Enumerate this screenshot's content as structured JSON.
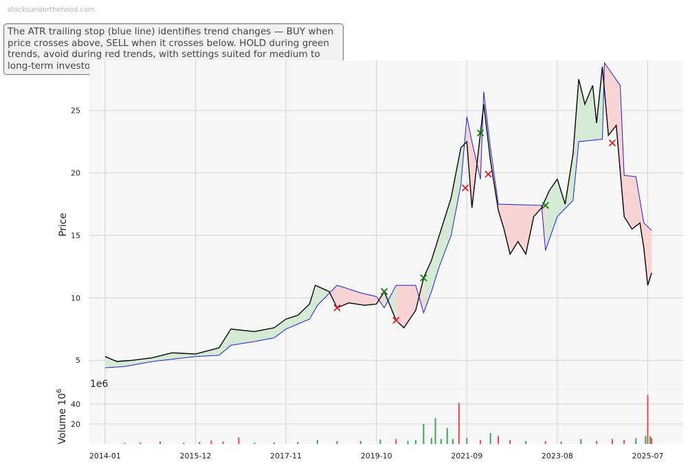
{
  "watermark": "stocksunderthehood.com",
  "annotation": "The ATR trailing stop (blue line) identifies trend changes — BUY when price crosses above, SELL when it crosses below. HOLD during green trends, avoid during red trends, with settings suited for medium to long-term investors.",
  "colors": {
    "price": "#000000",
    "stop": "#1f1fd6",
    "bull_fill": "#d5ead5",
    "bear_fill": "#f9d4d4",
    "buy_marker": "#117711",
    "sell_marker": "#d61f1f",
    "vol_up": "#3aa55f",
    "vol_down": "#e84a4a",
    "panel_bg": "#f7f7f7",
    "grid": "#d2d2d2"
  },
  "chart_data": [
    {
      "type": "line",
      "ylabel": "Price",
      "ylim": [
        2.7,
        29.0
      ],
      "yticks": [
        5,
        10,
        15,
        20,
        25
      ],
      "xlim": [
        "2013-09",
        "2026-04"
      ],
      "xticks": [
        "2014-01",
        "2015-12",
        "2017-11",
        "2019-10",
        "2021-09",
        "2023-08",
        "2025-07"
      ],
      "grid": true,
      "price_series": {
        "name": "Price",
        "points": [
          [
            "2014-01-01",
            5.3
          ],
          [
            "2014-04-01",
            4.9
          ],
          [
            "2014-08-01",
            5.0
          ],
          [
            "2015-01-01",
            5.2
          ],
          [
            "2015-06-01",
            5.6
          ],
          [
            "2015-12-01",
            5.5
          ],
          [
            "2016-06-01",
            6.0
          ],
          [
            "2016-09-01",
            7.5
          ],
          [
            "2017-03-01",
            7.3
          ],
          [
            "2017-08-01",
            7.6
          ],
          [
            "2017-11-01",
            8.3
          ],
          [
            "2018-02-01",
            8.6
          ],
          [
            "2018-05-01",
            9.5
          ],
          [
            "2018-06-15",
            11.0
          ],
          [
            "2018-10-01",
            10.5
          ],
          [
            "2018-12-01",
            9.2
          ],
          [
            "2019-03-01",
            9.6
          ],
          [
            "2019-07-01",
            9.4
          ],
          [
            "2019-10-01",
            9.5
          ],
          [
            "2019-12-01",
            10.5
          ],
          [
            "2020-03-01",
            8.2
          ],
          [
            "2020-05-01",
            7.6
          ],
          [
            "2020-08-01",
            9.0
          ],
          [
            "2020-10-01",
            11.6
          ],
          [
            "2020-12-01",
            13.0
          ],
          [
            "2021-02-01",
            15.0
          ],
          [
            "2021-05-01",
            18.0
          ],
          [
            "2021-07-15",
            22.0
          ],
          [
            "2021-09-01",
            22.5
          ],
          [
            "2021-10-10",
            17.2
          ],
          [
            "2021-12-15",
            23.2
          ],
          [
            "2022-01-10",
            25.5
          ],
          [
            "2022-03-01",
            21.0
          ],
          [
            "2022-05-01",
            17.0
          ],
          [
            "2022-06-15",
            15.5
          ],
          [
            "2022-08-01",
            13.5
          ],
          [
            "2022-10-01",
            14.5
          ],
          [
            "2022-12-01",
            13.5
          ],
          [
            "2023-02-01",
            16.5
          ],
          [
            "2023-04-01",
            17.2
          ],
          [
            "2023-06-01",
            18.6
          ],
          [
            "2023-08-01",
            19.5
          ],
          [
            "2023-10-01",
            17.5
          ],
          [
            "2023-12-01",
            21.5
          ],
          [
            "2024-01-15",
            27.5
          ],
          [
            "2024-03-01",
            25.5
          ],
          [
            "2024-05-01",
            27.0
          ],
          [
            "2024-06-01",
            24.0
          ],
          [
            "2024-07-15",
            28.5
          ],
          [
            "2024-09-01",
            23.0
          ],
          [
            "2024-11-01",
            23.8
          ],
          [
            "2025-01-01",
            16.5
          ],
          [
            "2025-03-01",
            15.5
          ],
          [
            "2025-05-01",
            16.0
          ],
          [
            "2025-06-01",
            14.0
          ],
          [
            "2025-07-01",
            11.0
          ],
          [
            "2025-08-01",
            12.0
          ]
        ]
      },
      "stop_series": {
        "name": "ATR trailing stop",
        "points": [
          [
            "2014-01-01",
            4.4
          ],
          [
            "2014-06-01",
            4.5
          ],
          [
            "2015-01-01",
            4.9
          ],
          [
            "2015-12-01",
            5.3
          ],
          [
            "2016-06-01",
            5.4
          ],
          [
            "2016-09-01",
            6.2
          ],
          [
            "2017-03-01",
            6.5
          ],
          [
            "2017-08-01",
            6.8
          ],
          [
            "2017-11-01",
            7.5
          ],
          [
            "2018-02-01",
            7.9
          ],
          [
            "2018-05-01",
            8.3
          ],
          [
            "2018-07-01",
            9.4
          ],
          [
            "2018-12-01",
            11.0
          ],
          [
            "2019-06-01",
            10.4
          ],
          [
            "2019-10-01",
            10.1
          ],
          [
            "2019-12-01",
            9.2
          ],
          [
            "2020-03-01",
            11.0
          ],
          [
            "2020-08-01",
            11.0
          ],
          [
            "2020-10-01",
            8.8
          ],
          [
            "2020-12-01",
            10.5
          ],
          [
            "2021-02-01",
            12.5
          ],
          [
            "2021-05-01",
            15.0
          ],
          [
            "2021-07-15",
            19.0
          ],
          [
            "2021-09-01",
            24.5
          ],
          [
            "2021-10-10",
            22.5
          ],
          [
            "2021-12-15",
            19.5
          ],
          [
            "2022-01-10",
            26.5
          ],
          [
            "2022-03-01",
            22.0
          ],
          [
            "2022-05-01",
            17.5
          ],
          [
            "2023-04-01",
            17.4
          ],
          [
            "2023-05-01",
            13.8
          ],
          [
            "2023-08-01",
            16.5
          ],
          [
            "2023-12-01",
            17.8
          ],
          [
            "2024-01-15",
            22.5
          ],
          [
            "2024-07-15",
            22.7
          ],
          [
            "2024-08-01",
            28.8
          ],
          [
            "2024-12-01",
            27.0
          ],
          [
            "2025-01-01",
            19.8
          ],
          [
            "2025-04-01",
            19.7
          ],
          [
            "2025-06-01",
            16.0
          ],
          [
            "2025-08-01",
            15.4
          ]
        ]
      },
      "trend_regions": [
        {
          "trend": "bull",
          "start": "2014-01-01",
          "end": "2018-10-01"
        },
        {
          "trend": "bear",
          "start": "2018-10-01",
          "end": "2019-12-01"
        },
        {
          "trend": "bull",
          "start": "2019-12-01",
          "end": "2020-03-01"
        },
        {
          "trend": "bear",
          "start": "2020-03-01",
          "end": "2020-10-01"
        },
        {
          "trend": "bull",
          "start": "2020-10-01",
          "end": "2021-09-01"
        },
        {
          "trend": "bear",
          "start": "2021-09-01",
          "end": "2021-12-15"
        },
        {
          "trend": "bull",
          "start": "2021-12-15",
          "end": "2022-03-01"
        },
        {
          "trend": "bear",
          "start": "2022-03-01",
          "end": "2023-05-01"
        },
        {
          "trend": "bull",
          "start": "2023-05-01",
          "end": "2024-08-01"
        },
        {
          "trend": "bear",
          "start": "2024-08-01",
          "end": "2025-08-01"
        }
      ],
      "signals": [
        {
          "type": "sell",
          "date": "2018-12-01",
          "price": 9.2
        },
        {
          "type": "buy",
          "date": "2019-12-01",
          "price": 10.5
        },
        {
          "type": "sell",
          "date": "2020-03-01",
          "price": 8.2
        },
        {
          "type": "buy",
          "date": "2020-10-01",
          "price": 11.6
        },
        {
          "type": "sell",
          "date": "2021-08-20",
          "price": 18.8
        },
        {
          "type": "buy",
          "date": "2021-12-15",
          "price": 23.2
        },
        {
          "type": "sell",
          "date": "2022-02-15",
          "price": 19.9
        },
        {
          "type": "buy",
          "date": "2023-05-01",
          "price": 17.4
        },
        {
          "type": "sell",
          "date": "2024-10-01",
          "price": 22.4
        }
      ]
    },
    {
      "type": "bar",
      "ylabel": "Volume",
      "ylabel_exponent": "6",
      "offset_label": "1e6",
      "ylim": [
        0,
        55
      ],
      "yticks": [
        20,
        40
      ],
      "series": [
        {
          "name": "Volume",
          "points": [
            [
              "2014-06-01",
              1.0,
              "down"
            ],
            [
              "2014-10-01",
              1.5,
              "down"
            ],
            [
              "2015-03-01",
              2.5,
              "down"
            ],
            [
              "2015-09-01",
              1.2,
              "down"
            ],
            [
              "2016-01-01",
              2.0,
              "down"
            ],
            [
              "2016-04-01",
              3.5,
              "down"
            ],
            [
              "2016-07-01",
              2.5,
              "down"
            ],
            [
              "2016-11-01",
              6.5,
              "down"
            ],
            [
              "2017-03-01",
              1.5,
              "up"
            ],
            [
              "2017-08-01",
              1.5,
              "up"
            ],
            [
              "2018-02-01",
              2.0,
              "up"
            ],
            [
              "2018-07-01",
              4.0,
              "up"
            ],
            [
              "2018-12-01",
              3.0,
              "down"
            ],
            [
              "2019-06-01",
              3.0,
              "up"
            ],
            [
              "2019-11-01",
              4.5,
              "up"
            ],
            [
              "2020-03-01",
              5.0,
              "down"
            ],
            [
              "2020-06-01",
              3.0,
              "up"
            ],
            [
              "2020-08-01",
              4.0,
              "up"
            ],
            [
              "2020-10-01",
              20.0,
              "up"
            ],
            [
              "2020-12-01",
              6.0,
              "up"
            ],
            [
              "2021-01-01",
              26.0,
              "up"
            ],
            [
              "2021-02-15",
              5.0,
              "up"
            ],
            [
              "2021-04-01",
              16.0,
              "up"
            ],
            [
              "2021-05-15",
              5.0,
              "up"
            ],
            [
              "2021-07-01",
              41.0,
              "down"
            ],
            [
              "2021-09-01",
              6.0,
              "up"
            ],
            [
              "2021-12-15",
              4.0,
              "down"
            ],
            [
              "2022-03-01",
              11.0,
              "up"
            ],
            [
              "2022-05-01",
              8.0,
              "down"
            ],
            [
              "2022-08-01",
              4.0,
              "down"
            ],
            [
              "2022-12-01",
              3.0,
              "up"
            ],
            [
              "2023-05-01",
              3.0,
              "down"
            ],
            [
              "2023-09-01",
              2.5,
              "up"
            ],
            [
              "2024-02-01",
              5.0,
              "up"
            ],
            [
              "2024-06-01",
              3.0,
              "down"
            ],
            [
              "2024-10-01",
              5.0,
              "down"
            ],
            [
              "2025-01-01",
              4.0,
              "down"
            ],
            [
              "2025-04-01",
              6.0,
              "up"
            ],
            [
              "2025-06-15",
              8.0,
              "up"
            ],
            [
              "2025-07-01",
              49.0,
              "down"
            ],
            [
              "2025-07-20",
              8.0,
              "up"
            ],
            [
              "2025-08-01",
              6.0,
              "down"
            ]
          ]
        }
      ]
    }
  ]
}
